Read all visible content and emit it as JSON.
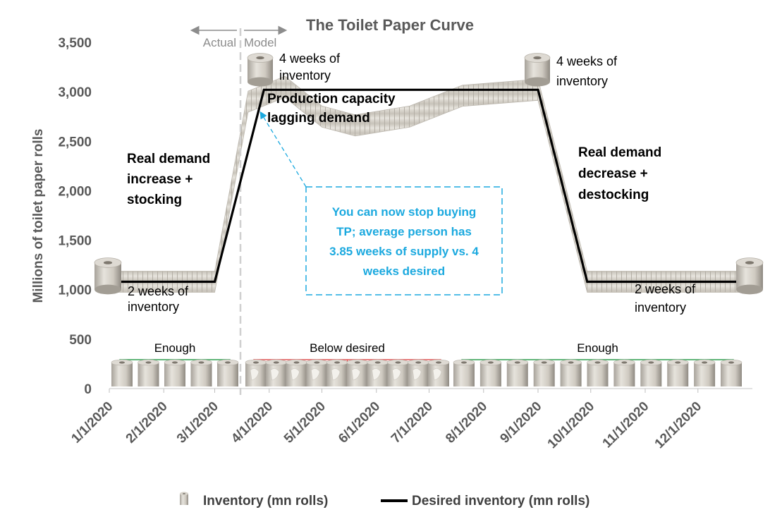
{
  "chart_data": {
    "type": "area",
    "title": "The Toilet Paper Curve",
    "ylabel": "Millions of toilet paper rolls",
    "xlabel": "",
    "ylim": [
      0,
      3500
    ],
    "yticks": [
      "0",
      "500",
      "1,000",
      "1,500",
      "2,000",
      "2,500",
      "3,000",
      "3,500"
    ],
    "ytick_values": [
      0,
      500,
      1000,
      1500,
      2000,
      2500,
      3000,
      3500
    ],
    "categories": [
      "1/1/2020",
      "2/1/2020",
      "3/1/2020",
      "4/1/2020",
      "5/1/2020",
      "6/1/2020",
      "7/1/2020",
      "8/1/2020",
      "9/1/2020",
      "10/1/2020",
      "11/1/2020",
      "12/1/2020"
    ],
    "series": [
      {
        "name": "Inventory (mn rolls)",
        "kind": "picture-area",
        "points": [
          {
            "x": "1/1/2020",
            "y": 1080
          },
          {
            "x": "3/1/2020",
            "y": 1080
          },
          {
            "x": "3/20/2020",
            "y": 2900
          },
          {
            "x": "4/10/2020",
            "y": 3050
          },
          {
            "x": "5/1/2020",
            "y": 2750
          },
          {
            "x": "5/20/2020",
            "y": 2660
          },
          {
            "x": "6/20/2020",
            "y": 2750
          },
          {
            "x": "7/20/2020",
            "y": 2960
          },
          {
            "x": "9/1/2020",
            "y": 3020
          },
          {
            "x": "9/29/2020",
            "y": 1080
          },
          {
            "x": "12/31/2020",
            "y": 1080
          }
        ]
      },
      {
        "name": "Desired inventory (mn rolls)",
        "kind": "line",
        "color": "#000000",
        "points": [
          {
            "x": "1/1/2020",
            "y": 1080
          },
          {
            "x": "3/1/2020",
            "y": 1080
          },
          {
            "x": "3/29/2020",
            "y": 3020
          },
          {
            "x": "9/1/2020",
            "y": 3020
          },
          {
            "x": "9/29/2020",
            "y": 1080
          },
          {
            "x": "12/31/2020",
            "y": 1080
          }
        ]
      }
    ],
    "phase_labels": {
      "actual": "Actual",
      "model": "Model"
    },
    "annotations": {
      "start_weeks": "2 weeks of\ninventory",
      "peak_weeks_left": "4 weeks of\ninventory",
      "peak_weeks_right": "4 weeks of\ninventory",
      "end_weeks": "2 weeks of\ninventory",
      "demand_increase": "Real demand\nincrease +\nstocking",
      "production_lag": "Production capacity\nlagging demand",
      "demand_decrease": "Real demand\ndecrease +\ndestocking",
      "callout": "You can now stop buying\nTP; average person has\n3.85 weeks of supply vs. 4\nweeks desired"
    },
    "brackets": [
      {
        "label": "Enough",
        "color": "#2e9e4f",
        "rolls": 5,
        "state": "full"
      },
      {
        "label": "Below desired",
        "color": "#e05050",
        "rolls": 10,
        "state": "partial"
      },
      {
        "label": "Enough",
        "color": "#2e9e4f",
        "rolls": 11,
        "state": "full"
      }
    ],
    "legend_position": "bottom",
    "grid": false,
    "colors": {
      "line": "#000000",
      "callout": "#1BA9DF",
      "roll": "#c9c5bc",
      "axis": "#d9d9d9"
    }
  }
}
